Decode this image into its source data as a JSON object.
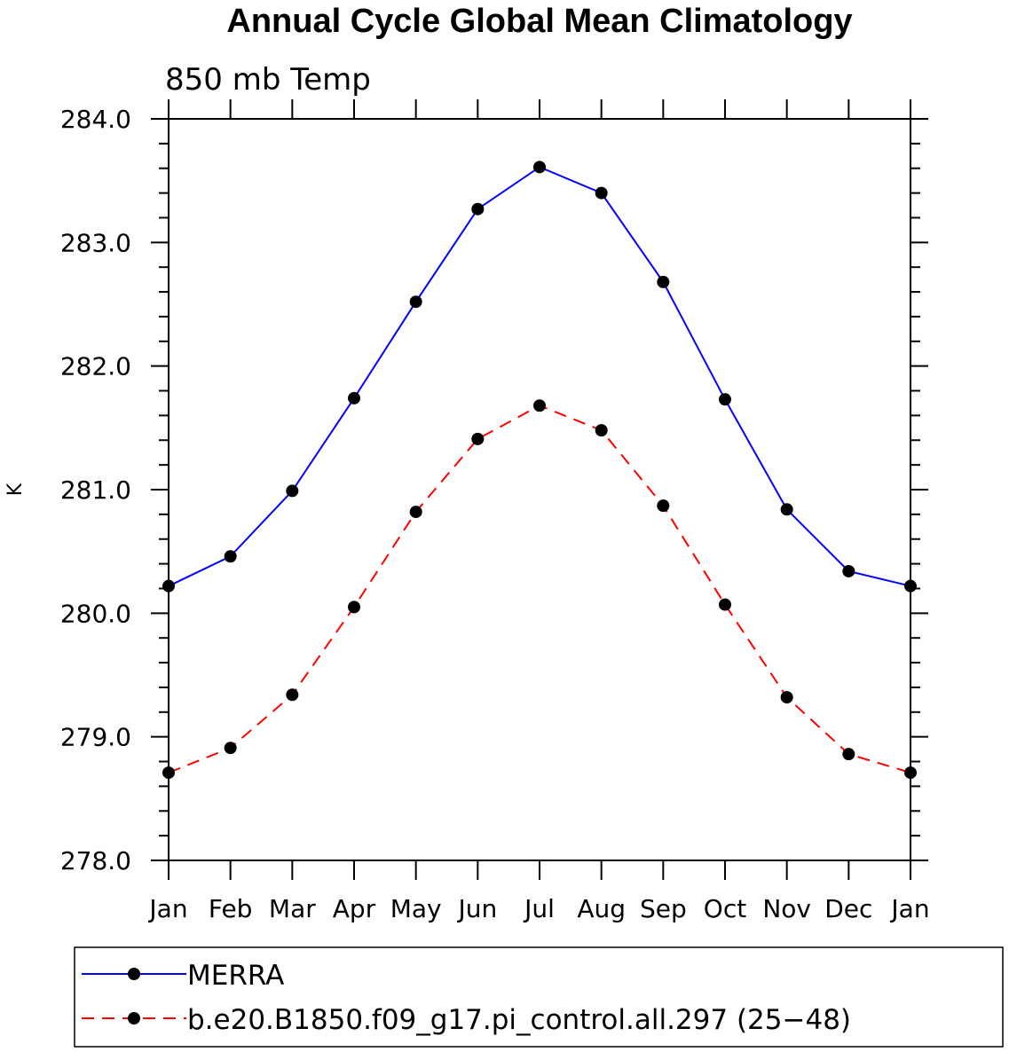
{
  "chart_data": {
    "type": "line",
    "title": "Annual Cycle Global Mean Climatology",
    "subtitle": "850 mb Temp",
    "xlabel": "",
    "ylabel": "K",
    "categories": [
      "Jan",
      "Feb",
      "Mar",
      "Apr",
      "May",
      "Jun",
      "Jul",
      "Aug",
      "Sep",
      "Oct",
      "Nov",
      "Dec",
      "Jan"
    ],
    "ylim": [
      278.0,
      284.0
    ],
    "yticks": [
      "278.0",
      "279.0",
      "280.0",
      "281.0",
      "282.0",
      "283.0",
      "284.0"
    ],
    "ytick_values": [
      278,
      279,
      280,
      281,
      282,
      283,
      284
    ],
    "grid": false,
    "legend_position": "bottom",
    "series": [
      {
        "name": "MERRA",
        "color": "#0000ff",
        "style": "solid",
        "marker": "circle",
        "values": [
          280.22,
          280.46,
          280.99,
          281.74,
          282.52,
          283.27,
          283.61,
          283.4,
          282.68,
          281.73,
          280.84,
          280.34,
          280.22
        ]
      },
      {
        "name": "b.e20.B1850.f09_g17.pi_control.all.297 (25−48)",
        "color": "#ff0000",
        "style": "dashed",
        "marker": "circle",
        "values": [
          278.71,
          278.91,
          279.34,
          280.05,
          280.82,
          281.41,
          281.68,
          281.48,
          280.87,
          280.07,
          279.32,
          278.86,
          278.71
        ]
      }
    ]
  }
}
